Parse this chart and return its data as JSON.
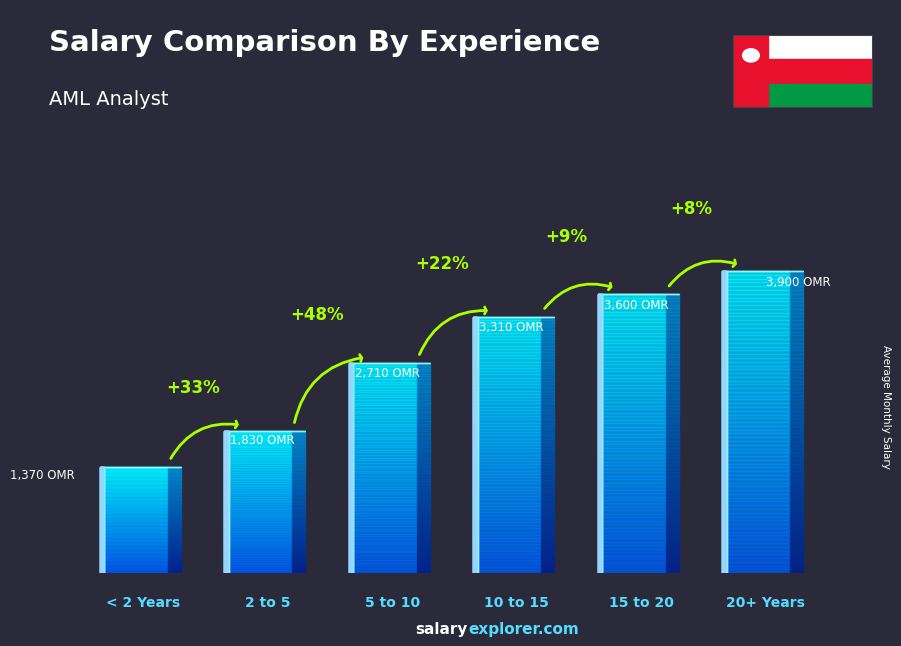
{
  "title": "Salary Comparison By Experience",
  "subtitle": "AML Analyst",
  "categories": [
    "< 2 Years",
    "2 to 5",
    "5 to 10",
    "10 to 15",
    "15 to 20",
    "20+ Years"
  ],
  "values": [
    1370,
    1830,
    2710,
    3310,
    3600,
    3900
  ],
  "value_labels": [
    "1,370 OMR",
    "1,830 OMR",
    "2,710 OMR",
    "3,310 OMR",
    "3,600 OMR",
    "3,900 OMR"
  ],
  "pct_labels": [
    null,
    "+33%",
    "+48%",
    "+22%",
    "+9%",
    "+8%"
  ],
  "title_color": "#ffffff",
  "subtitle_color": "#ffffff",
  "value_label_color": "#ffffff",
  "pct_label_color": "#aaff00",
  "xlabel_color": "#55ddff",
  "ylabel_text": "Average Monthly Salary",
  "ylabel_color": "#ffffff",
  "footer_bold": "salary",
  "footer_plain": "explorer.com",
  "footer_bold_color": "#ffffff",
  "footer_plain_color": "#55ddff",
  "bg_color": "#2a2a3a",
  "ylim": [
    0,
    4800
  ],
  "bar_width": 0.7,
  "bar_front_color_top": "#55eeff",
  "bar_front_color_bot": "#0077cc",
  "bar_side_color_top": "#33aacc",
  "bar_side_color_bot": "#004488",
  "bar_top_color": "#88ffff",
  "bar_alpha": 0.82,
  "depth_ratio": 0.22,
  "depth_vert": 0.04
}
